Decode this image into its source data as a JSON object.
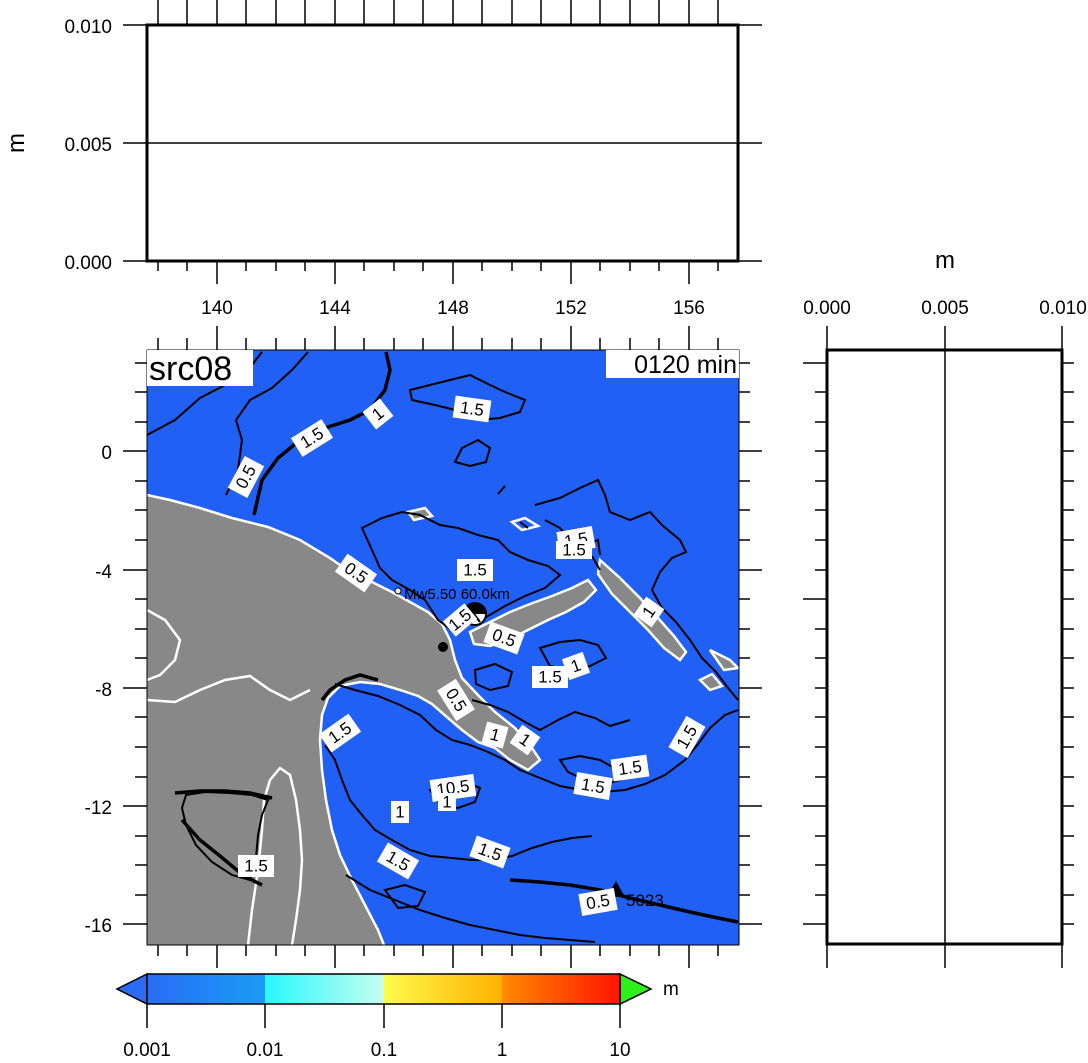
{
  "top_panel": {
    "y_axis_label": "m",
    "y_ticks": [
      "0.010",
      "0.005",
      "0.000"
    ],
    "x_ticks": [
      "140",
      "144",
      "148",
      "152",
      "156"
    ]
  },
  "side_panel": {
    "x_axis_label": "m",
    "x_ticks": [
      "0.000",
      "0.005",
      "0.010"
    ]
  },
  "map": {
    "title": "src08",
    "time_label": "0120 min",
    "lat_ticks": [
      "0",
      "-4",
      "-8",
      "-12",
      "-16"
    ],
    "event_label": "Mw5.50 60.0km",
    "station_label": "5023",
    "contour_labels": [
      "1.5",
      "1",
      "1.5",
      "0.5",
      "1.5",
      "1.5",
      "0.5",
      "1.5",
      "0.5",
      "1",
      "1.5",
      "1",
      "0.5",
      "1",
      "1",
      "1.5",
      "1.5",
      "1.5",
      "1.5",
      "10.5",
      "1",
      "1.5",
      "1.5",
      "1.5",
      "1.5",
      "0.5",
      "1"
    ],
    "colors": {
      "ocean": "#2160f5",
      "land": "#888888",
      "coastline": "#ffffff",
      "contour": "#000000"
    }
  },
  "colorbar": {
    "unit": "m",
    "tick_labels": [
      "0.001",
      "0.01",
      "0.1",
      "1",
      "10"
    ],
    "colors": [
      "#2a6cf6",
      "#1fa9f5",
      "#35fdf9",
      "#c0fff2",
      "#fffb4b",
      "#ff9b00",
      "#ff2a00",
      "#2ff01a"
    ]
  }
}
